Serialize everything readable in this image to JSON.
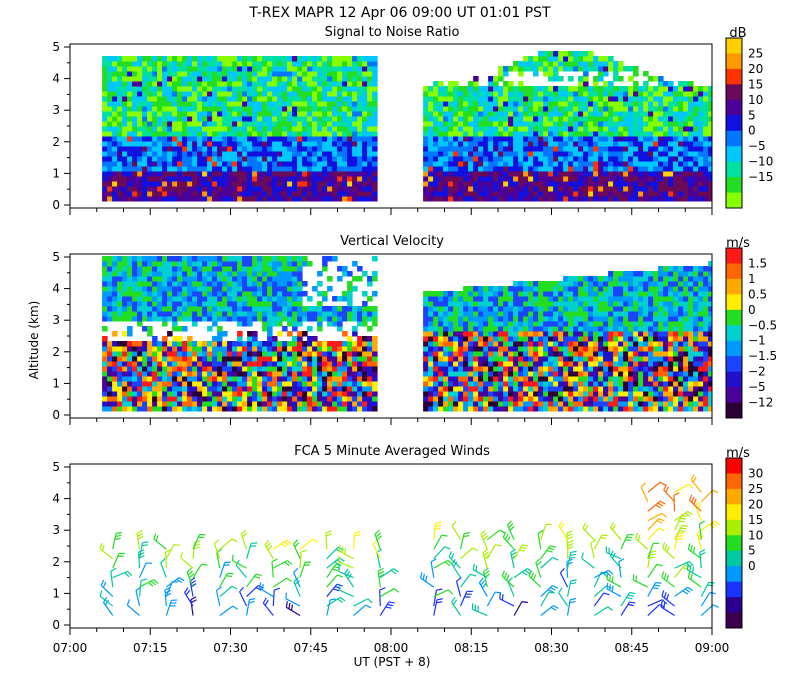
{
  "header": {
    "title": "T-REX  MAPR 12 Apr 06  09:00 UT  01:01  PST"
  },
  "shared_axis": {
    "ylabel": "Altitude (km)",
    "xlabel": "UT  (PST + 8)",
    "xticks": [
      "07:00",
      "07:15",
      "07:30",
      "07:45",
      "08:00",
      "08:15",
      "08:30",
      "08:45",
      "09:00"
    ],
    "yticks": [
      "0",
      "1",
      "2",
      "3",
      "4",
      "5"
    ]
  },
  "chart_data": [
    {
      "type": "heatmap",
      "title": "Signal to Noise Ratio",
      "xlabel": "UT  (PST + 8)",
      "ylabel": "Altitude (km)",
      "xlim_minutes": [
        0,
        120
      ],
      "ylim": [
        0,
        5
      ],
      "data_gaps": [
        {
          "from": "07:00",
          "to": "07:06"
        },
        {
          "from": "08:00",
          "to": "08:06"
        }
      ],
      "colorbar": {
        "unit": "dB",
        "labels": [
          "25",
          "20",
          "15",
          "10",
          "5",
          "0",
          "−5",
          "−10",
          "−15"
        ],
        "colors": [
          "#ffd000",
          "#ff9900",
          "#ff3300",
          "#6b0a5a",
          "#4a0099",
          "#1010e0",
          "#0077ff",
          "#00c8ff",
          "#00e0a0",
          "#22dd22",
          "#88ff00"
        ]
      }
    },
    {
      "type": "heatmap",
      "title": "Vertical Velocity",
      "xlabel": "UT  (PST + 8)",
      "ylabel": "Altitude (km)",
      "xlim_minutes": [
        0,
        120
      ],
      "ylim": [
        0,
        5
      ],
      "colorbar": {
        "unit": "m/s",
        "labels": [
          "1.5",
          "1",
          "0.5",
          "0",
          "−0.5",
          "−1",
          "−1.5",
          "−2",
          "−5",
          "−12"
        ],
        "colors": [
          "#ff1a1a",
          "#ff6600",
          "#ffaa00",
          "#ffee00",
          "#22dd22",
          "#00d0d0",
          "#0099ff",
          "#1a44ff",
          "#2211cc",
          "#4a0099",
          "#2a0035"
        ]
      }
    },
    {
      "type": "scatter",
      "title": "FCA 5 Minute Averaged Winds",
      "xlabel": "UT  (PST + 8)",
      "ylabel": "Altitude (km)",
      "xlim_minutes": [
        0,
        120
      ],
      "ylim": [
        0,
        5
      ],
      "profile_times": [
        "07:08",
        "07:13",
        "07:18",
        "07:23",
        "07:28",
        "07:33",
        "07:38",
        "07:43",
        "07:48",
        "07:53",
        "07:58",
        "08:08",
        "08:13",
        "08:18",
        "08:23",
        "08:28",
        "08:33",
        "08:38",
        "08:43",
        "08:48",
        "08:53",
        "08:58"
      ],
      "colorbar": {
        "unit": "m/s",
        "labels": [
          "30",
          "25",
          "20",
          "15",
          "10",
          "5",
          "0"
        ],
        "colors": [
          "#ff0000",
          "#ff6600",
          "#ffaa00",
          "#ffee00",
          "#aaee00",
          "#22dd22",
          "#00c8a0",
          "#0099ff",
          "#1a33ff",
          "#2a0090",
          "#3d0050"
        ]
      }
    }
  ]
}
